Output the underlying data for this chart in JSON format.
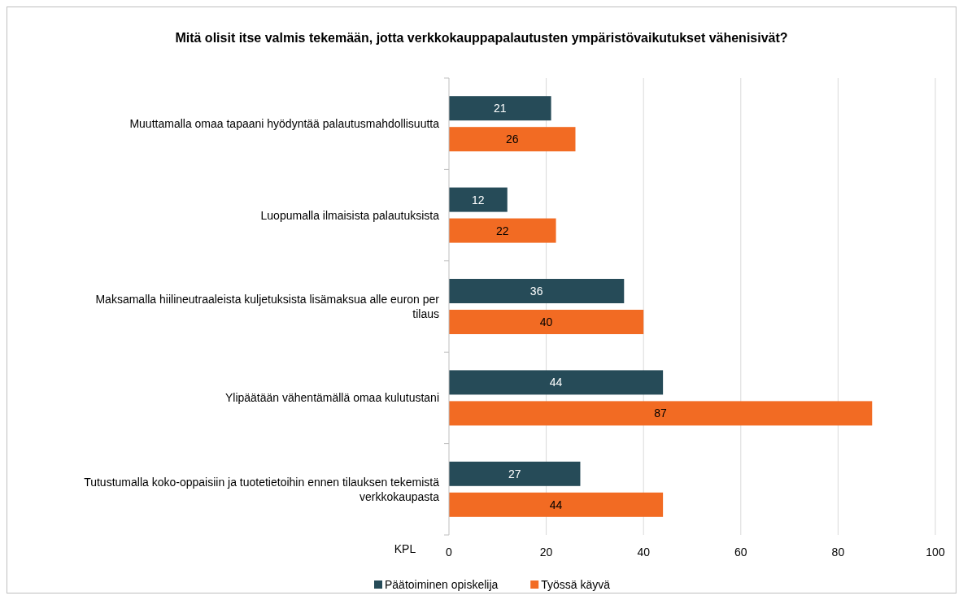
{
  "chart_data": {
    "type": "bar",
    "orientation": "horizontal",
    "title": "Mitä olisit itse valmis tekemään, jotta verkkokauppapalautusten ympäristövaikutukset vähenisivät?",
    "categories": [
      "Muuttamalla omaa tapaani hyödyntää palautusmahdollisuutta",
      "Luopumalla ilmaisista palautuksista",
      "Maksamalla hiilineutraaleista kuljetuksista lisämaksua alle euron per tilaus",
      "Ylipäätään vähentämällä omaa kulutustani",
      "Tutustumalla koko-oppaisiin ja tuotetietoihin ennen tilauksen tekemistä verkkokaupasta"
    ],
    "series": [
      {
        "name": "Päätoiminen opiskelija",
        "color": "#264b58",
        "values": [
          21,
          12,
          36,
          44,
          27
        ]
      },
      {
        "name": "Työssä käyvä",
        "color": "#f26b23",
        "values": [
          26,
          22,
          40,
          87,
          44
        ]
      }
    ],
    "xlabel": "KPL",
    "xlim": [
      0,
      100
    ],
    "xticks": [
      0,
      20,
      40,
      60,
      80,
      100
    ],
    "grid": "x",
    "legend": "bottom",
    "data_labels": true
  }
}
